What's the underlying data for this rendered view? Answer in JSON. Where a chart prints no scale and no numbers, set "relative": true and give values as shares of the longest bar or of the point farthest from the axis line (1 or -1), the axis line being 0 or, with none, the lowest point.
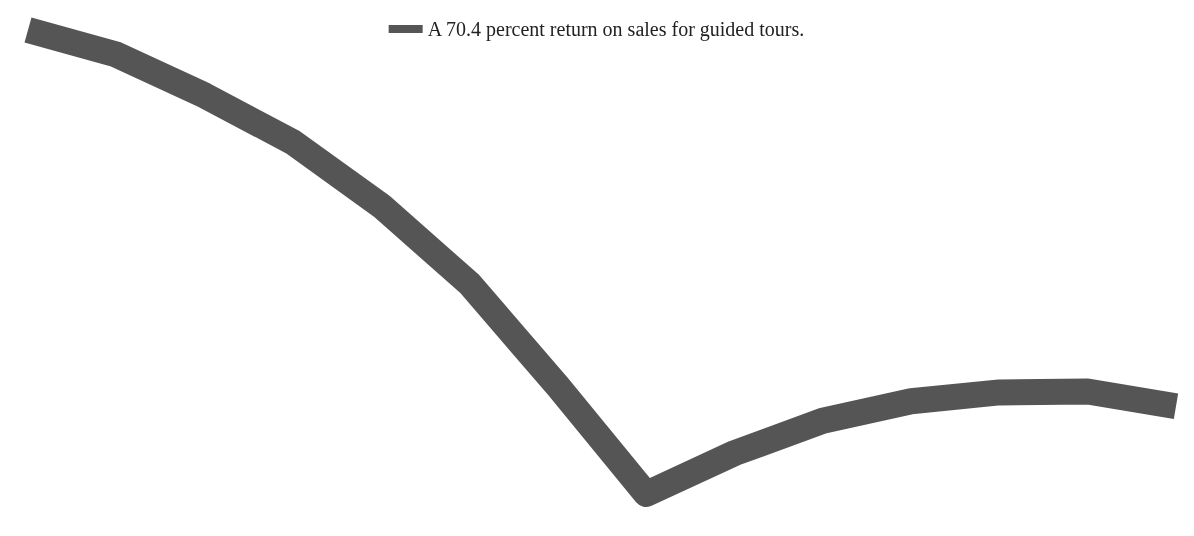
{
  "chart_data": {
    "type": "line",
    "relative": true,
    "categories": [
      null,
      null,
      null,
      null,
      null,
      null,
      null,
      null,
      null,
      null,
      null,
      null,
      null,
      null
    ],
    "series": [
      {
        "name": "A 70.4 percent return on sales for guided tours.",
        "color": "#555555",
        "values": [
          1,
          0.947,
          0.859,
          0.758,
          0.621,
          0.453,
          0.232,
          0,
          0.088,
          0.158,
          0.2,
          0.219,
          0.221,
          0.189
        ]
      }
    ],
    "legend": "top",
    "marker": "none",
    "line_style": "solid",
    "grid": false
  }
}
